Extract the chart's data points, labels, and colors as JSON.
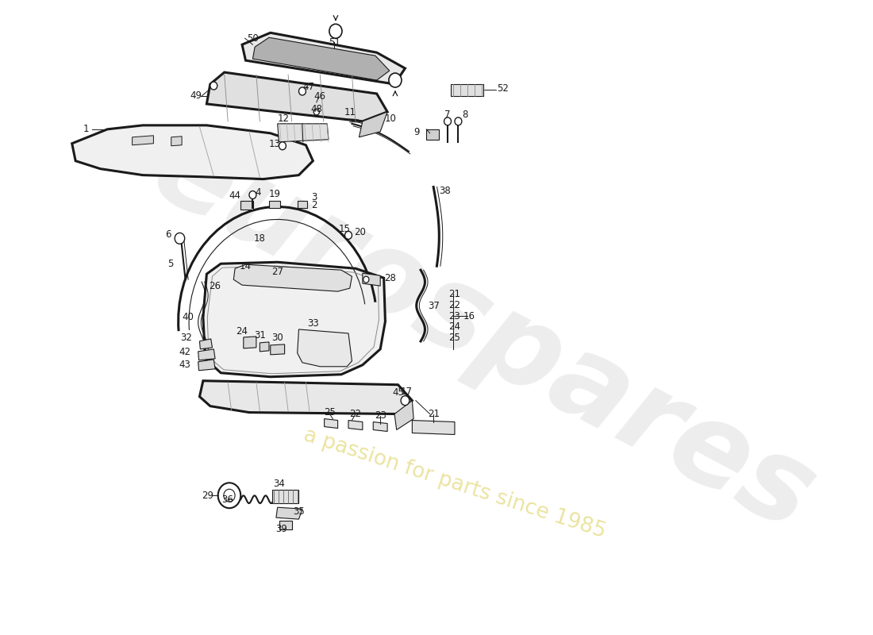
{
  "bg_color": "#ffffff",
  "line_color": "#1a1a1a",
  "watermark1": "eurospares",
  "watermark2": "a passion for parts since 1985",
  "wm_color1": "#d8d8d8",
  "wm_color2": "#e8df90"
}
